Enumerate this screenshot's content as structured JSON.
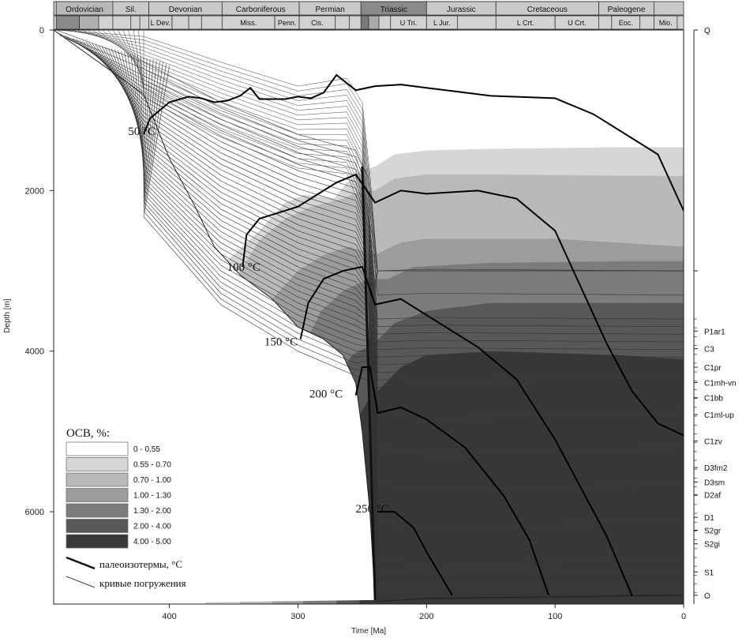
{
  "chart_data": {
    "type": "area",
    "xlabel": "Time [Ma]",
    "ylabel": "Depth [m]",
    "xlim": [
      490,
      0
    ],
    "ylim": [
      0,
      7150
    ],
    "x_ticks": [
      400,
      300,
      200,
      100,
      0
    ],
    "y_ticks": [
      0,
      2000,
      4000,
      6000
    ],
    "grid": false,
    "legend_position": "bottom-left",
    "periods": [
      {
        "name": "Ordovician",
        "start": 488,
        "end": 444
      },
      {
        "name": "Sil.",
        "start": 444,
        "end": 416
      },
      {
        "name": "Devonian",
        "start": 416,
        "end": 359
      },
      {
        "name": "Carboniferous",
        "start": 359,
        "end": 299
      },
      {
        "name": "Permian",
        "start": 299,
        "end": 251
      },
      {
        "name": "Triassic",
        "start": 251,
        "end": 200
      },
      {
        "name": "Jurassic",
        "start": 200,
        "end": 146
      },
      {
        "name": "Cretaceous",
        "start": 146,
        "end": 66
      },
      {
        "name": "Paleogene",
        "start": 66,
        "end": 23
      }
    ],
    "epochs": [
      {
        "name": "L Dev.",
        "start": 416,
        "end": 398
      },
      {
        "name": "Miss.",
        "start": 359,
        "end": 318
      },
      {
        "name": "Penn.",
        "start": 318,
        "end": 299
      },
      {
        "name": "Cis.",
        "start": 299,
        "end": 271
      },
      {
        "name": "U Tri.",
        "start": 228,
        "end": 200
      },
      {
        "name": "L Jur.",
        "start": 200,
        "end": 176
      },
      {
        "name": "L Crt.",
        "start": 146,
        "end": 100
      },
      {
        "name": "U Crt.",
        "start": 100,
        "end": 66
      },
      {
        "name": "Eoc.",
        "start": 56,
        "end": 34
      },
      {
        "name": "Mio.",
        "start": 23,
        "end": 5
      }
    ],
    "layers": [
      {
        "name": "Q",
        "depth": 0
      },
      {
        "name": "P1ar1",
        "depth": 3750
      },
      {
        "name": "C3",
        "depth": 3970
      },
      {
        "name": "C1pr",
        "depth": 4200
      },
      {
        "name": "C1mh-vn",
        "depth": 4390
      },
      {
        "name": "C1bb",
        "depth": 4580
      },
      {
        "name": "C1ml-up",
        "depth": 4790
      },
      {
        "name": "C1zv",
        "depth": 5120
      },
      {
        "name": "D3fm2",
        "depth": 5450
      },
      {
        "name": "D3sm",
        "depth": 5630
      },
      {
        "name": "D2af",
        "depth": 5790
      },
      {
        "name": "D1",
        "depth": 6070
      },
      {
        "name": "S2gr",
        "depth": 6230
      },
      {
        "name": "S2gi",
        "depth": 6400
      },
      {
        "name": "S1",
        "depth": 6750
      },
      {
        "name": "O",
        "depth": 7040
      }
    ],
    "isotherm_labels": [
      "50 °C",
      "100 °C",
      "150 °C",
      "200 °C",
      "250 °C"
    ],
    "isotherms": [
      {
        "name": "50 °C",
        "points": [
          [
            420,
            1300
          ],
          [
            415,
            1100
          ],
          [
            400,
            900
          ],
          [
            385,
            830
          ],
          [
            375,
            850
          ],
          [
            365,
            900
          ],
          [
            355,
            880
          ],
          [
            345,
            820
          ],
          [
            337,
            720
          ],
          [
            330,
            860
          ],
          [
            310,
            860
          ],
          [
            300,
            830
          ],
          [
            290,
            850
          ],
          [
            280,
            780
          ],
          [
            270,
            560
          ],
          [
            255,
            750
          ],
          [
            240,
            700
          ],
          [
            220,
            680
          ],
          [
            200,
            720
          ],
          [
            180,
            760
          ],
          [
            150,
            820
          ],
          [
            100,
            850
          ],
          [
            70,
            1050
          ],
          [
            40,
            1350
          ],
          [
            20,
            1550
          ],
          [
            0,
            2250
          ]
        ]
      },
      {
        "name": "100 °C",
        "points": [
          [
            343,
            2950
          ],
          [
            340,
            2550
          ],
          [
            330,
            2350
          ],
          [
            310,
            2250
          ],
          [
            300,
            2200
          ],
          [
            290,
            2100
          ],
          [
            270,
            1900
          ],
          [
            255,
            1800
          ],
          [
            240,
            2150
          ],
          [
            220,
            2000
          ],
          [
            200,
            2040
          ],
          [
            160,
            2000
          ],
          [
            130,
            2100
          ],
          [
            100,
            2500
          ],
          [
            80,
            3200
          ],
          [
            60,
            3900
          ],
          [
            40,
            4500
          ],
          [
            20,
            4900
          ],
          [
            0,
            5050
          ]
        ]
      },
      {
        "name": "150 °C",
        "points": [
          [
            298,
            3850
          ],
          [
            292,
            3400
          ],
          [
            280,
            3100
          ],
          [
            265,
            3000
          ],
          [
            250,
            2950
          ],
          [
            240,
            3420
          ],
          [
            220,
            3350
          ],
          [
            200,
            3550
          ],
          [
            160,
            3950
          ],
          [
            130,
            4350
          ],
          [
            100,
            5100
          ],
          [
            80,
            5700
          ],
          [
            60,
            6300
          ],
          [
            40,
            7050
          ]
        ]
      },
      {
        "name": "200 °C",
        "points": [
          [
            255,
            4550
          ],
          [
            250,
            4200
          ],
          [
            244,
            4200
          ],
          [
            238,
            4770
          ],
          [
            220,
            4700
          ],
          [
            200,
            4850
          ],
          [
            170,
            5200
          ],
          [
            140,
            5800
          ],
          [
            120,
            6350
          ],
          [
            105,
            7040
          ]
        ]
      },
      {
        "name": "250 °C",
        "points": [
          [
            238,
            6000
          ],
          [
            225,
            6000
          ],
          [
            210,
            6200
          ],
          [
            200,
            6500
          ],
          [
            180,
            7040
          ]
        ]
      }
    ],
    "legend": {
      "title": "OCB, %:",
      "ranges": [
        {
          "label": "0 - 0.55",
          "color": "#ffffff"
        },
        {
          "label": "0.55 - 0.70",
          "color": "#d6d6d6"
        },
        {
          "label": "0.70 - 1.00",
          "color": "#b9b9b9"
        },
        {
          "label": "1.00 - 1.30",
          "color": "#9c9c9c"
        },
        {
          "label": "1.30 - 2.00",
          "color": "#7c7c7c"
        },
        {
          "label": "2.00 - 4.00",
          "color": "#585858"
        },
        {
          "label": "4.00 - 5.00",
          "color": "#383838"
        }
      ],
      "lines": [
        {
          "label": "палеоизотермы, °C",
          "style": "thick"
        },
        {
          "label": "кривые погружения",
          "style": "thin"
        }
      ]
    }
  }
}
